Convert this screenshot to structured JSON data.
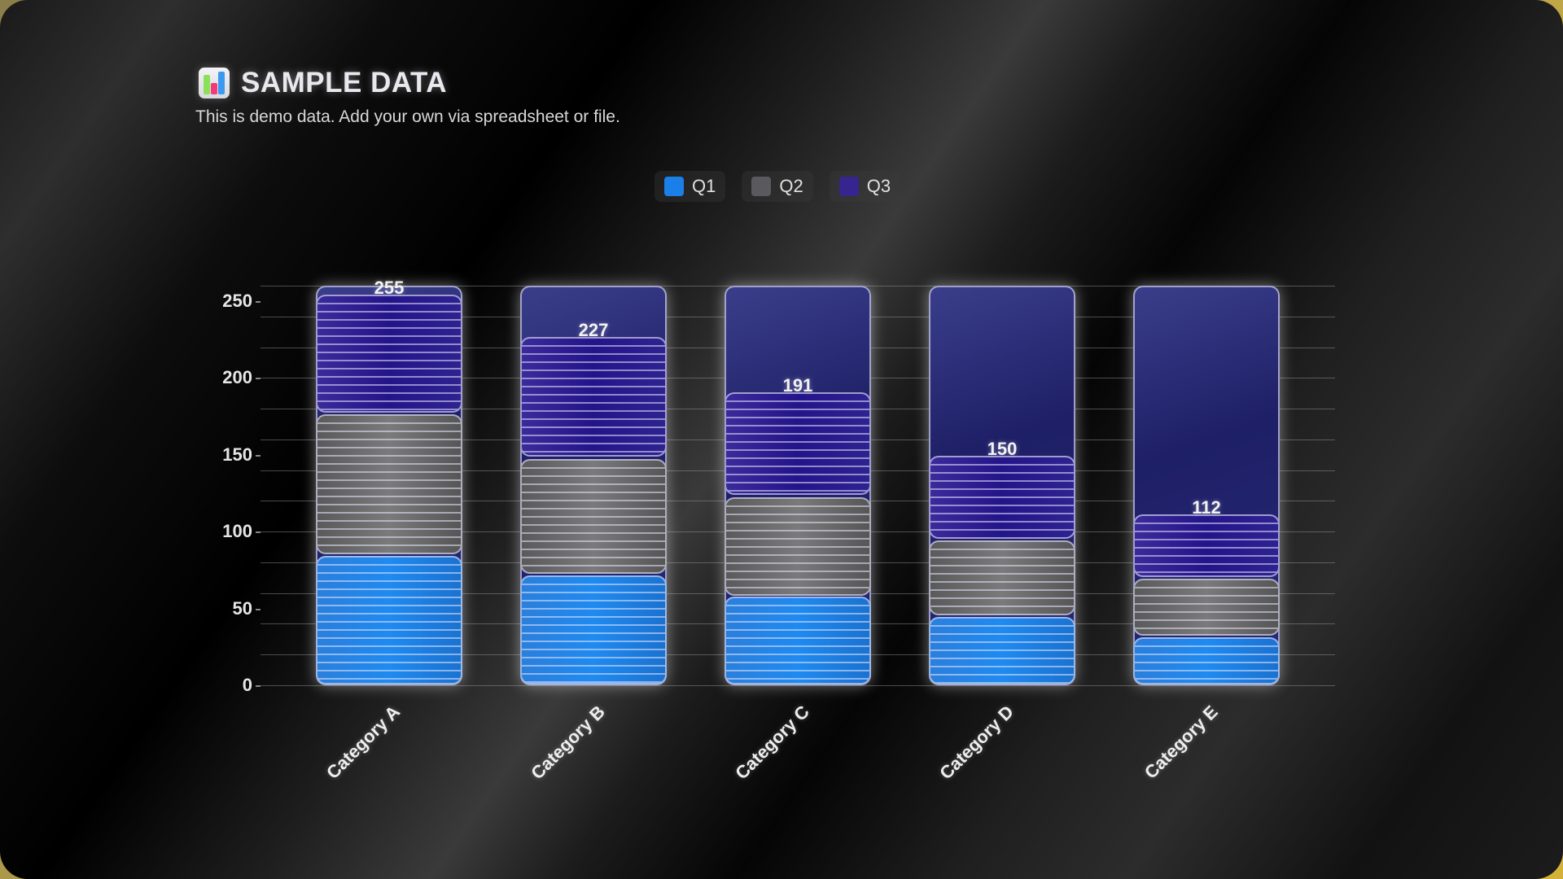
{
  "header": {
    "icon": "bar-chart-icon",
    "title": "SAMPLE DATA",
    "subtitle": "This is demo data. Add your own via spreadsheet or file."
  },
  "legend": [
    {
      "label": "Q1",
      "color": "#1a7fe8"
    },
    {
      "label": "Q2",
      "color": "#5a5a5e"
    },
    {
      "label": "Q3",
      "color": "#36258f"
    }
  ],
  "chart_data": {
    "type": "bar",
    "stacked": true,
    "title": "SAMPLE DATA",
    "subtitle": "This is demo data. Add your own via spreadsheet or file.",
    "categories": [
      "Category A",
      "Category B",
      "Category C",
      "Category D",
      "Category E"
    ],
    "series": [
      {
        "name": "Q1",
        "color": "#1a7fe8",
        "values": [
          85,
          72,
          58,
          45,
          32
        ]
      },
      {
        "name": "Q2",
        "color": "#5a5a5e",
        "values": [
          92,
          76,
          65,
          50,
          38
        ]
      },
      {
        "name": "Q3",
        "color": "#36258f",
        "values": [
          78,
          79,
          68,
          55,
          42
        ]
      }
    ],
    "totals": [
      255,
      227,
      191,
      150,
      112
    ],
    "xlabel": "",
    "ylabel": "",
    "ylim": [
      0,
      260
    ],
    "yticks": [
      0,
      50,
      100,
      150,
      200,
      250
    ],
    "grid": true,
    "grid_step": 20,
    "legend_position": "top"
  }
}
